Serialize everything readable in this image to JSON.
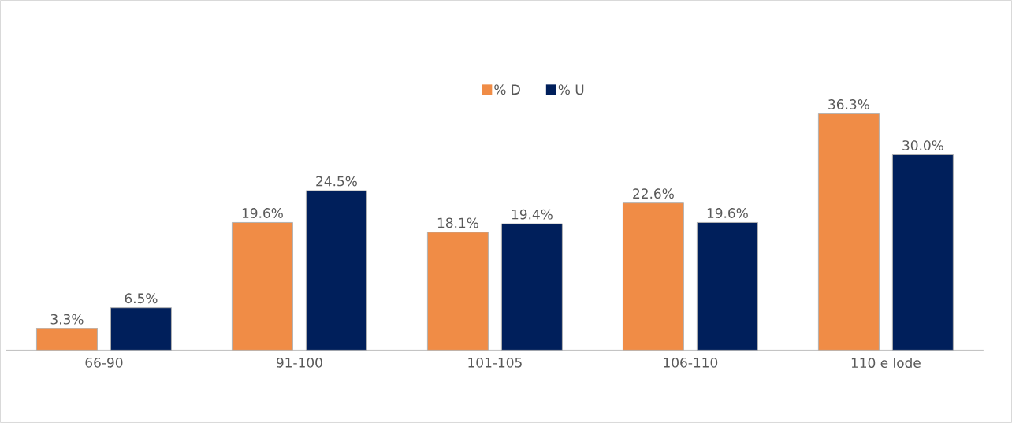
{
  "chart_data": {
    "type": "bar",
    "categories": [
      "66-90",
      "91-100",
      "101-105",
      "106-110",
      "110 e lode"
    ],
    "series": [
      {
        "name": "% D",
        "color": "#f08c46",
        "values": [
          3.3,
          19.6,
          18.1,
          22.6,
          36.3
        ],
        "value_labels": [
          "3.3%",
          "19.6%",
          "18.1%",
          "22.6%",
          "36.3%"
        ]
      },
      {
        "name": "% U",
        "color": "#001f5b",
        "values": [
          6.5,
          24.5,
          19.4,
          19.6,
          30.0
        ],
        "value_labels": [
          "6.5%",
          "24.5%",
          "19.4%",
          "19.6%",
          "30.0%"
        ]
      }
    ],
    "legend": "top",
    "grid": false
  }
}
